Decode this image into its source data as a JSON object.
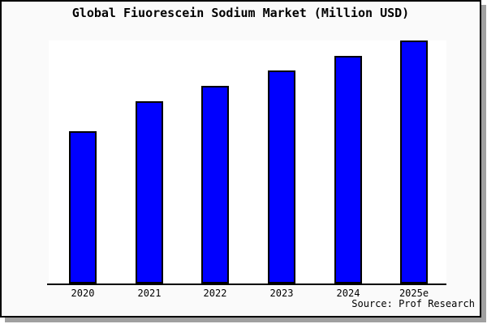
{
  "chart_data": {
    "type": "bar",
    "title": "Global Fiuorescein Sodium Market (Million USD)",
    "categories": [
      "2020",
      "2021",
      "2022",
      "2023",
      "2024",
      "2025e"
    ],
    "values": [
      62.8,
      75.1,
      81.4,
      87.7,
      93.7,
      100
    ],
    "xlabel": "",
    "ylabel": "",
    "ylim": [
      0,
      100
    ],
    "grid": false,
    "legend": false,
    "source": "Source: Prof Research",
    "colors": {
      "bar_fill": "#0000ff",
      "bar_border": "#000000",
      "plot_bg": "#ffffff",
      "chart_bg": "#fafafa",
      "frame_border": "#000000",
      "shadow": "#a0a0a0",
      "axis": "#000000",
      "text": "#000000"
    }
  }
}
